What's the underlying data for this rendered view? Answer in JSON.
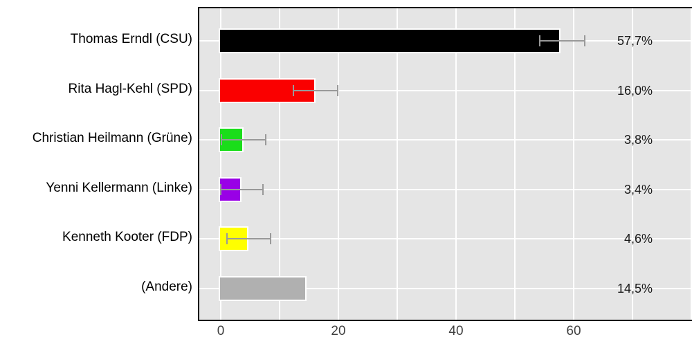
{
  "chart_data": {
    "type": "bar",
    "orientation": "horizontal",
    "title": "",
    "xlabel": "",
    "ylabel": "",
    "categories": [
      "Thomas Erndl (CSU)",
      "Rita Hagl-Kehl (SPD)",
      "Christian Heilmann (Grüne)",
      "Yenni Kellermann (Linke)",
      "Kenneth Kooter (FDP)",
      "(Andere)"
    ],
    "values": [
      57.7,
      16.0,
      3.8,
      3.4,
      4.6,
      14.5
    ],
    "value_labels": [
      "57,7%",
      "16,0%",
      "3,8%",
      "3,4%",
      "4,6%",
      "14,5%"
    ],
    "bar_colors": [
      "#000000",
      "#FA0000",
      "#1ADD1A",
      "#9900E6",
      "#FFFF00",
      "#B0B0B0"
    ],
    "error_bars": [
      {
        "low": 54.2,
        "high": 61.9
      },
      {
        "low": 12.4,
        "high": 19.9
      },
      {
        "low": 0.1,
        "high": 7.7
      },
      {
        "low": 0.0,
        "high": 7.2
      },
      {
        "low": 1.0,
        "high": 8.5
      },
      null
    ],
    "x_axis": {
      "major_ticks": [
        0,
        20,
        40,
        60
      ],
      "gridlines": [
        0,
        10,
        20,
        30,
        40,
        50,
        60,
        70,
        80
      ],
      "range": [
        -3.6,
        80.1
      ]
    },
    "grid": true,
    "legend": false,
    "colors": {
      "panel_bg": "#E5E5E5",
      "grid": "#FFFFFF",
      "error_bar": "#999999",
      "bar_outline": "#FFFFFF",
      "panel_border": "#000000",
      "tick_label": "#404040",
      "value_label": "#1A1A1A",
      "category_label": "#000000"
    }
  }
}
